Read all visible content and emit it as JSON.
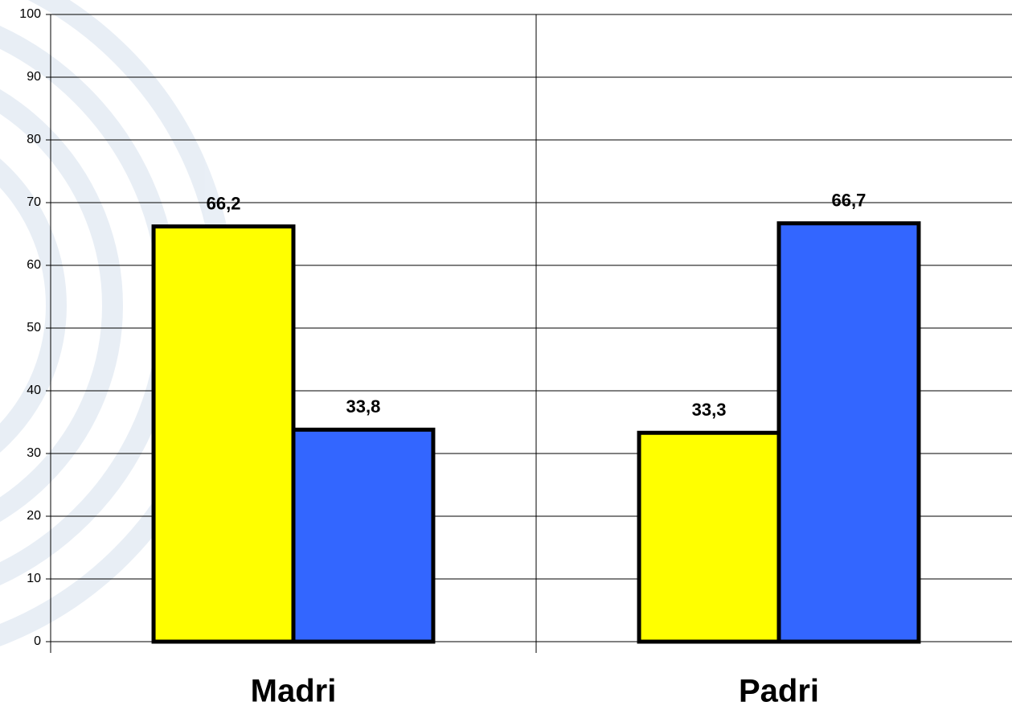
{
  "chart_data": {
    "type": "bar",
    "categories": [
      "Madri",
      "Padri"
    ],
    "series": [
      {
        "color": "#ffff00",
        "values": [
          66.2,
          33.3
        ],
        "value_labels": [
          "66,2",
          "33,3"
        ]
      },
      {
        "color": "#3366ff",
        "values": [
          33.8,
          66.7
        ],
        "value_labels": [
          "33,8",
          "66,7"
        ]
      }
    ],
    "ylim": [
      0,
      100
    ],
    "yticks": [
      0,
      10,
      20,
      30,
      40,
      50,
      60,
      70,
      80,
      90,
      100
    ],
    "grid": true
  }
}
